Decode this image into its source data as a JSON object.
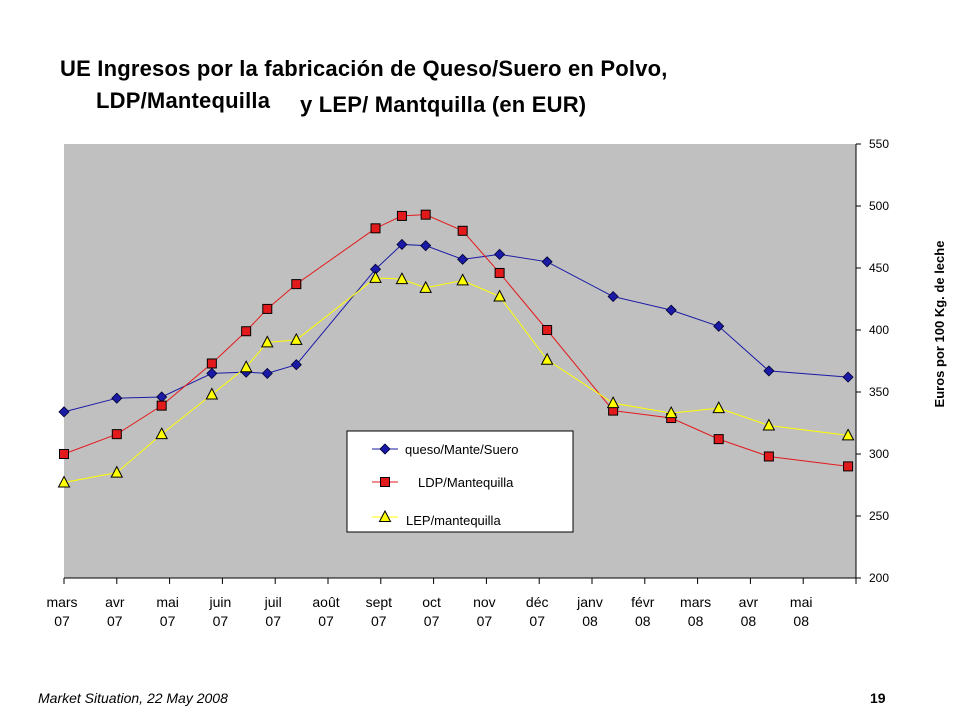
{
  "title": {
    "line1": "UE Ingresos por la fabricación de Queso/Suero en Polvo,",
    "line2a": "LDP/Mantequilla",
    "line2b": "y  LEP/ Mantquilla  (en EUR)"
  },
  "footer": {
    "source": "Market Situation, 22 May 2008",
    "page": "19"
  },
  "colors": {
    "plot_bg": "#c0c0c0",
    "series_queso": "#1a1aa6",
    "series_ldp": "#e31a1c",
    "series_lep": "#ffff00",
    "grid": "#000000"
  },
  "chart_data": {
    "type": "line",
    "ylabel": "Euros por 100 Kg. de leche",
    "ylim": [
      200,
      550
    ],
    "yticks": [
      "200",
      "250",
      "300",
      "350",
      "400",
      "450",
      "500",
      "550"
    ],
    "y_axis_position": "right",
    "grid": false,
    "legend_position": "bottom-center",
    "x_tick_labels": [
      {
        "month": "mars",
        "year": "07"
      },
      {
        "month": "avr",
        "year": "07"
      },
      {
        "month": "mai",
        "year": "07"
      },
      {
        "month": "juin",
        "year": "07"
      },
      {
        "month": "juil",
        "year": "07"
      },
      {
        "month": "août",
        "year": "07"
      },
      {
        "month": "sept",
        "year": "07"
      },
      {
        "month": "oct",
        "year": "07"
      },
      {
        "month": "nov",
        "year": "07"
      },
      {
        "month": "déc",
        "year": "07"
      },
      {
        "month": "janv",
        "year": "08"
      },
      {
        "month": "févr",
        "year": "08"
      },
      {
        "month": "mars",
        "year": "08"
      },
      {
        "month": "avr",
        "year": "08"
      },
      {
        "month": "mai",
        "year": "08"
      }
    ],
    "x_domain": [
      0,
      15
    ],
    "series": [
      {
        "name": "queso/Mante/Suero",
        "marker": "diamond",
        "x": [
          0,
          1,
          1.85,
          2.8,
          3.45,
          3.85,
          4.4,
          5.9,
          6.4,
          6.85,
          7.55,
          8.25,
          9.15,
          10.4,
          11.5,
          12.4,
          13.35,
          14.85
        ],
        "y": [
          334,
          345,
          346,
          365,
          366,
          365,
          372,
          449,
          469,
          468,
          457,
          461,
          455,
          427,
          416,
          403,
          367,
          362
        ]
      },
      {
        "name": "LDP/Mantequilla",
        "marker": "square",
        "x": [
          0,
          1,
          1.85,
          2.8,
          3.45,
          3.85,
          4.4,
          5.9,
          6.4,
          6.85,
          7.55,
          8.25,
          9.15,
          10.4,
          11.5,
          12.4,
          13.35,
          14.85
        ],
        "y": [
          300,
          316,
          339,
          373,
          399,
          417,
          437,
          482,
          492,
          493,
          480,
          446,
          400,
          335,
          329,
          312,
          298,
          290
        ]
      },
      {
        "name": "LEP/mantequilla",
        "marker": "triangle",
        "x": [
          0,
          1,
          1.85,
          2.8,
          3.45,
          3.85,
          4.4,
          5.9,
          6.4,
          6.85,
          7.55,
          8.25,
          9.15,
          10.4,
          11.5,
          12.4,
          13.35,
          14.85
        ],
        "y": [
          277,
          285,
          316,
          348,
          370,
          390,
          392,
          442,
          441,
          434,
          440,
          427,
          376,
          341,
          333,
          337,
          323,
          315
        ]
      }
    ]
  }
}
